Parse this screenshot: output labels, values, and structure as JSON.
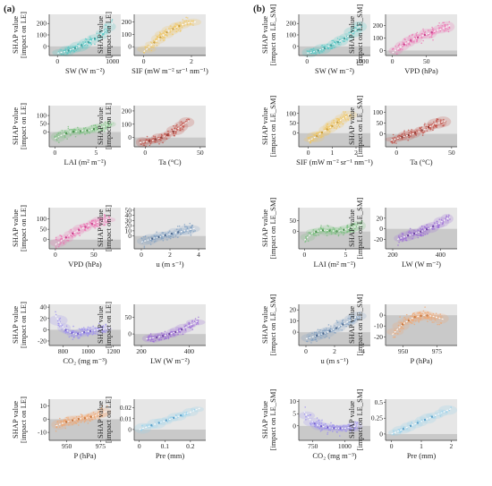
{
  "panel_labels": [
    "(a)",
    "(b)"
  ],
  "y_label_line1": "SHAP value",
  "chart_data": [
    {
      "id": "a1",
      "type": "scatter",
      "xlabel": "SW (W m⁻²)",
      "ylabel": "[impact on LE]",
      "xlim": [
        -150,
        1150
      ],
      "ylim": [
        -80,
        280
      ],
      "xticks": [
        0,
        1000
      ],
      "yticks": [
        0,
        100,
        200
      ],
      "color": "#4fc8c6",
      "dark": "#2b8f8d",
      "trend": [
        [
          0,
          -60
        ],
        [
          150,
          -45
        ],
        [
          300,
          -20
        ],
        [
          450,
          10
        ],
        [
          600,
          45
        ],
        [
          750,
          90
        ],
        [
          900,
          150
        ],
        [
          1000,
          200
        ]
      ],
      "spread": 0.07,
      "n": 110
    },
    {
      "id": "a2",
      "type": "scatter",
      "xlabel": "SIF (mW m⁻² sr⁻¹ nm⁻¹)",
      "ylabel": "[impact on LE]",
      "xlim": [
        -0.4,
        2.6
      ],
      "ylim": [
        -70,
        260
      ],
      "xticks": [
        0,
        2
      ],
      "yticks": [
        0,
        100,
        200
      ],
      "color": "#f2c55b",
      "dark": "#c28f1e",
      "trend": [
        [
          0,
          -40
        ],
        [
          0.3,
          10
        ],
        [
          0.6,
          60
        ],
        [
          1.0,
          120
        ],
        [
          1.4,
          160
        ],
        [
          1.8,
          190
        ],
        [
          2.2,
          200
        ]
      ],
      "spread": 0.09,
      "n": 110
    },
    {
      "id": "a3",
      "type": "scatter",
      "xlabel": "LAI (m² m⁻²)",
      "ylabel": "[impact on LE]",
      "xlim": [
        -0.7,
        8
      ],
      "ylim": [
        -90,
        160
      ],
      "xticks": [
        0,
        5
      ],
      "yticks": [
        0,
        50,
        100
      ],
      "color": "#76c07b",
      "dark": "#2e7d32",
      "trend": [
        [
          0,
          -40
        ],
        [
          1,
          -15
        ],
        [
          2,
          0
        ],
        [
          3,
          5
        ],
        [
          4,
          10
        ],
        [
          5,
          20
        ],
        [
          6,
          35
        ],
        [
          7,
          55
        ]
      ],
      "spread": 0.08,
      "n": 110
    },
    {
      "id": "a4",
      "type": "scatter",
      "xlabel": "Ta (°C)",
      "ylabel": "[impact on LE]",
      "xlim": [
        -10,
        55
      ],
      "ylim": [
        -70,
        240
      ],
      "xticks": [
        0,
        50
      ],
      "yticks": [
        0,
        100,
        200
      ],
      "color": "#c0483f",
      "dark": "#7a1f1a",
      "trend": [
        [
          -5,
          -40
        ],
        [
          5,
          -25
        ],
        [
          15,
          0
        ],
        [
          25,
          40
        ],
        [
          32,
          80
        ],
        [
          40,
          130
        ]
      ],
      "spread": 0.08,
      "n": 110
    },
    {
      "id": "a5",
      "type": "scatter",
      "xlabel": "VPD (hPa)",
      "ylabel": "[impact on LE]",
      "xlim": [
        -8,
        85
      ],
      "ylim": [
        -45,
        155
      ],
      "xticks": [
        0,
        50
      ],
      "yticks": [
        0,
        50,
        100
      ],
      "color": "#ef6fb2",
      "dark": "#c1207a",
      "trend": [
        [
          0,
          -25
        ],
        [
          10,
          0
        ],
        [
          20,
          25
        ],
        [
          35,
          55
        ],
        [
          50,
          80
        ],
        [
          70,
          100
        ]
      ],
      "spread": 0.1,
      "n": 110
    },
    {
      "id": "a6",
      "type": "scatter",
      "xlabel": "u (m s⁻¹)",
      "ylabel": "[impact on LE]",
      "xlim": [
        -0.5,
        4.5
      ],
      "ylim": [
        -25,
        55
      ],
      "xticks": [
        0,
        2,
        4
      ],
      "yticks": [
        0,
        10,
        20,
        30,
        40,
        50
      ],
      "color": "#7f9fc2",
      "dark": "#2f4f7a",
      "trend": [
        [
          0,
          -12
        ],
        [
          0.8,
          -5
        ],
        [
          1.5,
          0
        ],
        [
          2.2,
          5
        ],
        [
          3,
          10
        ],
        [
          3.8,
          15
        ]
      ],
      "spread": 0.1,
      "n": 110
    },
    {
      "id": "a7",
      "type": "scatter",
      "xlabel": "CO₂ (mg m⁻³)",
      "ylabel": "[impact on LE]",
      "xlim": [
        690,
        1260
      ],
      "ylim": [
        -28,
        45
      ],
      "xticks": [
        800,
        1000,
        1200
      ],
      "yticks": [
        -20,
        0,
        20,
        40
      ],
      "color": "#9a8cf0",
      "dark": "#5b45c8",
      "trend": [
        [
          740,
          25
        ],
        [
          780,
          10
        ],
        [
          820,
          0
        ],
        [
          860,
          -5
        ],
        [
          900,
          -8
        ],
        [
          1000,
          -3
        ],
        [
          1150,
          2
        ]
      ],
      "spread": 0.1,
      "n": 110
    },
    {
      "id": "a8",
      "type": "scatter",
      "xlabel": "LW (W m⁻²)",
      "ylabel": "[impact on LE]",
      "xlim": [
        170,
        470
      ],
      "ylim": [
        -35,
        90
      ],
      "xticks": [
        200,
        400
      ],
      "yticks": [
        0,
        50
      ],
      "color": "#9b6ad8",
      "dark": "#5a2a96",
      "trend": [
        [
          220,
          -15
        ],
        [
          270,
          -10
        ],
        [
          320,
          0
        ],
        [
          360,
          10
        ],
        [
          400,
          25
        ],
        [
          440,
          40
        ]
      ],
      "spread": 0.08,
      "n": 110
    },
    {
      "id": "a9",
      "type": "scatter",
      "xlabel": "P (hPa)",
      "ylabel": "[impact on LE]",
      "xlim": [
        937,
        990
      ],
      "ylim": [
        -16,
        15
      ],
      "xticks": [
        950,
        975
      ],
      "yticks": [
        -10,
        0,
        10
      ],
      "color": "#f2a56d",
      "dark": "#c05f1c",
      "trend": [
        [
          942,
          -5
        ],
        [
          950,
          -2
        ],
        [
          958,
          0
        ],
        [
          966,
          1
        ],
        [
          972,
          3
        ],
        [
          980,
          6
        ]
      ],
      "spread": 0.1,
      "n": 110
    },
    {
      "id": "a10",
      "type": "scatter",
      "xlabel": "Pre (mm)",
      "ylabel": "[impact on LE]",
      "xlim": [
        -0.02,
        0.26
      ],
      "ylim": [
        -0.01,
        0.028
      ],
      "xticks": [
        0.0,
        0.1,
        0.2
      ],
      "yticks": [
        0.0,
        0.01,
        0.02
      ],
      "color": "#8fd0ef",
      "dark": "#3b8fc0",
      "trend": [
        [
          0.0,
          0.0
        ],
        [
          0.05,
          0.004
        ],
        [
          0.1,
          0.008
        ],
        [
          0.15,
          0.012
        ],
        [
          0.2,
          0.016
        ],
        [
          0.24,
          0.02
        ]
      ],
      "spread": 0.04,
      "n": 40
    },
    {
      "id": "b1",
      "type": "scatter",
      "xlabel": "SW (W m⁻²)",
      "ylabel": "[impact on LE_SM]",
      "xlim": [
        -150,
        1150
      ],
      "ylim": [
        -80,
        280
      ],
      "xticks": [
        0,
        1000
      ],
      "yticks": [
        0,
        100,
        200
      ],
      "color": "#4fc8c6",
      "dark": "#2b8f8d",
      "trend": [
        [
          0,
          -60
        ],
        [
          150,
          -45
        ],
        [
          300,
          -20
        ],
        [
          450,
          10
        ],
        [
          600,
          45
        ],
        [
          750,
          90
        ],
        [
          900,
          150
        ],
        [
          1000,
          200
        ]
      ],
      "spread": 0.07,
      "n": 110
    },
    {
      "id": "b2",
      "type": "scatter",
      "xlabel": "VPD (hPa)",
      "ylabel": "[impact on LE_SM]",
      "xlim": [
        -10,
        95
      ],
      "ylim": [
        -40,
        290
      ],
      "xticks": [
        0,
        50
      ],
      "yticks": [
        0,
        100,
        200
      ],
      "color": "#ef6fb2",
      "dark": "#c1207a",
      "trend": [
        [
          0,
          -20
        ],
        [
          10,
          20
        ],
        [
          20,
          60
        ],
        [
          35,
          100
        ],
        [
          50,
          130
        ],
        [
          70,
          170
        ],
        [
          85,
          200
        ]
      ],
      "spread": 0.1,
      "n": 110
    },
    {
      "id": "b3",
      "type": "scatter",
      "xlabel": "SIF (mW m⁻² sr⁻¹ nm⁻¹)",
      "ylabel": "[impact on LE_SM]",
      "xlim": [
        -0.4,
        2.6
      ],
      "ylim": [
        -70,
        140
      ],
      "xticks": [
        0,
        1,
        2
      ],
      "yticks": [
        0,
        50,
        100
      ],
      "color": "#f2c55b",
      "dark": "#c28f1e",
      "trend": [
        [
          0,
          -40
        ],
        [
          0.3,
          -20
        ],
        [
          0.6,
          5
        ],
        [
          1.0,
          35
        ],
        [
          1.4,
          70
        ],
        [
          1.8,
          100
        ]
      ],
      "spread": 0.09,
      "n": 110
    },
    {
      "id": "b4",
      "type": "scatter",
      "xlabel": "Ta (°C)",
      "ylabel": "[impact on LE_SM]",
      "xlim": [
        -10,
        55
      ],
      "ylim": [
        -60,
        130
      ],
      "xticks": [
        0,
        50
      ],
      "yticks": [
        0,
        50,
        100
      ],
      "color": "#c0483f",
      "dark": "#7a1f1a",
      "trend": [
        [
          -5,
          -30
        ],
        [
          5,
          -15
        ],
        [
          15,
          0
        ],
        [
          25,
          20
        ],
        [
          35,
          45
        ],
        [
          45,
          60
        ]
      ],
      "spread": 0.09,
      "n": 110
    },
    {
      "id": "b5",
      "type": "scatter",
      "xlabel": "LAI (m² m⁻²)",
      "ylabel": "[impact on LE_SM]",
      "xlim": [
        -0.7,
        8
      ],
      "ylim": [
        -80,
        110
      ],
      "xticks": [
        0,
        5
      ],
      "yticks": [
        0,
        50
      ],
      "color": "#76c07b",
      "dark": "#2e7d32",
      "trend": [
        [
          0,
          -40
        ],
        [
          1,
          -5
        ],
        [
          2,
          5
        ],
        [
          3,
          5
        ],
        [
          4,
          0
        ],
        [
          5,
          10
        ],
        [
          6,
          20
        ],
        [
          7,
          30
        ]
      ],
      "spread": 0.08,
      "n": 110
    },
    {
      "id": "b6",
      "type": "scatter",
      "xlabel": "LW (W m⁻²)",
      "ylabel": "[impact on LE_SM]",
      "xlim": [
        170,
        470
      ],
      "ylim": [
        -38,
        40
      ],
      "xticks": [
        200,
        400
      ],
      "yticks": [
        -20,
        0,
        20
      ],
      "color": "#9b6ad8",
      "dark": "#5a2a96",
      "trend": [
        [
          220,
          -20
        ],
        [
          270,
          -12
        ],
        [
          320,
          -5
        ],
        [
          360,
          2
        ],
        [
          400,
          12
        ],
        [
          440,
          22
        ]
      ],
      "spread": 0.1,
      "n": 110
    },
    {
      "id": "b7",
      "type": "scatter",
      "xlabel": "u (m s⁻¹)",
      "ylabel": "[impact on LE_SM]",
      "xlim": [
        -0.5,
        4.5
      ],
      "ylim": [
        -12,
        25
      ],
      "xticks": [
        0,
        2,
        4
      ],
      "yticks": [
        0,
        10,
        20
      ],
      "color": "#7f9fc2",
      "dark": "#2f4f7a",
      "trend": [
        [
          0,
          -6
        ],
        [
          0.8,
          -3
        ],
        [
          1.5,
          0
        ],
        [
          2.2,
          4
        ],
        [
          3,
          10
        ],
        [
          3.8,
          16
        ]
      ],
      "spread": 0.1,
      "n": 110
    },
    {
      "id": "b8",
      "type": "scatter",
      "xlabel": "P (hPa)",
      "ylabel": "[impact on LE_SM]",
      "xlim": [
        937,
        990
      ],
      "ylim": [
        -28,
        10
      ],
      "xticks": [
        950,
        975
      ],
      "yticks": [
        -20,
        -10,
        0
      ],
      "color": "#f2a56d",
      "dark": "#c05f1c",
      "trend": [
        [
          942,
          -18
        ],
        [
          950,
          -8
        ],
        [
          958,
          -2
        ],
        [
          966,
          0
        ],
        [
          972,
          -1
        ],
        [
          980,
          -4
        ]
      ],
      "spread": 0.12,
      "n": 110
    },
    {
      "id": "b9",
      "type": "scatter",
      "xlabel": "CO₂ (mg m⁻³)",
      "ylabel": "[impact on LE_SM]",
      "xlim": [
        640,
        1200
      ],
      "ylim": [
        -6,
        11
      ],
      "xticks": [
        750,
        1000
      ],
      "yticks": [
        0,
        5,
        10
      ],
      "color": "#9a8cf0",
      "dark": "#5b45c8",
      "trend": [
        [
          680,
          6
        ],
        [
          720,
          3
        ],
        [
          760,
          1
        ],
        [
          800,
          0
        ],
        [
          900,
          -1
        ],
        [
          1000,
          -1
        ],
        [
          1100,
          0
        ]
      ],
      "spread": 0.1,
      "n": 110
    },
    {
      "id": "b10",
      "type": "scatter",
      "xlabel": "Pre (mm)",
      "ylabel": "[impact on LE_SM]",
      "xlim": [
        -0.2,
        2.2
      ],
      "ylim": [
        -0.1,
        0.55
      ],
      "xticks": [
        0,
        1,
        2
      ],
      "yticks": [
        0.0,
        0.25,
        0.5
      ],
      "color": "#8fd0ef",
      "dark": "#3b8fc0",
      "trend": [
        [
          0,
          0.0
        ],
        [
          0.5,
          0.1
        ],
        [
          1.0,
          0.2
        ],
        [
          1.5,
          0.3
        ],
        [
          2.0,
          0.4
        ]
      ],
      "spread": 0.05,
      "n": 40
    }
  ]
}
